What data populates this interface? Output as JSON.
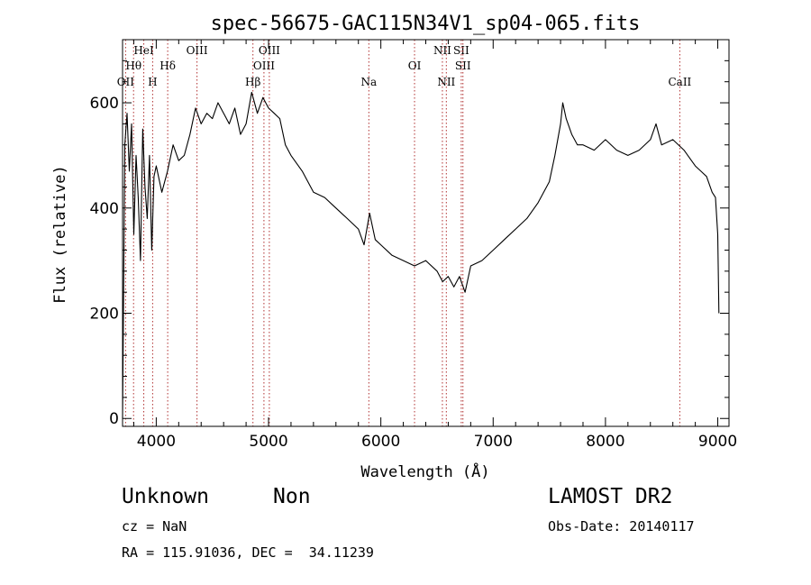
{
  "chart_data": {
    "type": "line",
    "title": "spec-56675-GAC115N34V1_sp04-065.fits",
    "xlabel": "Wavelength (Å)",
    "ylabel": "Flux (relative)",
    "xlim": [
      3700,
      9100
    ],
    "ylim": [
      -15,
      720
    ],
    "xticks": [
      4000,
      5000,
      6000,
      7000,
      8000,
      9000
    ],
    "yticks": [
      0,
      200,
      400,
      600
    ],
    "grid": false,
    "series": [
      {
        "name": "flux",
        "x": [
          3700,
          3720,
          3740,
          3760,
          3780,
          3800,
          3820,
          3840,
          3860,
          3880,
          3900,
          3920,
          3940,
          3960,
          3980,
          4000,
          4050,
          4100,
          4150,
          4200,
          4250,
          4300,
          4350,
          4400,
          4450,
          4500,
          4550,
          4600,
          4650,
          4700,
          4750,
          4800,
          4850,
          4900,
          4950,
          5000,
          5050,
          5100,
          5150,
          5200,
          5300,
          5400,
          5500,
          5600,
          5700,
          5800,
          5850,
          5900,
          5950,
          6000,
          6100,
          6200,
          6300,
          6400,
          6500,
          6550,
          6600,
          6650,
          6700,
          6750,
          6800,
          6900,
          7000,
          7100,
          7200,
          7300,
          7400,
          7500,
          7550,
          7600,
          7620,
          7650,
          7700,
          7750,
          7800,
          7900,
          8000,
          8100,
          8200,
          8300,
          8400,
          8450,
          8500,
          8600,
          8700,
          8800,
          8850,
          8900,
          8950,
          8980,
          9000,
          9010
        ],
        "y": [
          0,
          520,
          580,
          470,
          560,
          350,
          500,
          420,
          300,
          550,
          440,
          380,
          500,
          320,
          460,
          480,
          430,
          470,
          520,
          490,
          500,
          540,
          590,
          560,
          580,
          570,
          600,
          580,
          560,
          590,
          540,
          560,
          620,
          580,
          610,
          590,
          580,
          570,
          520,
          500,
          470,
          430,
          420,
          400,
          380,
          360,
          330,
          390,
          340,
          330,
          310,
          300,
          290,
          300,
          280,
          260,
          270,
          250,
          270,
          240,
          290,
          300,
          320,
          340,
          360,
          380,
          410,
          450,
          500,
          560,
          600,
          570,
          540,
          520,
          520,
          510,
          530,
          510,
          500,
          510,
          530,
          560,
          520,
          530,
          510,
          480,
          470,
          460,
          430,
          420,
          350,
          200
        ]
      }
    ],
    "spectral_lines": [
      {
        "label": "OII",
        "wavelength": 3727,
        "row": 3
      },
      {
        "label": "Hθ",
        "wavelength": 3798,
        "row": 1
      },
      {
        "label": "HeI",
        "wavelength": 3889,
        "row": 0
      },
      {
        "label": "H",
        "wavelength": 3968,
        "row": 2
      },
      {
        "label": "Hδ",
        "wavelength": 4102,
        "row": 1
      },
      {
        "label": "OIII",
        "wavelength": 4363,
        "row": 0
      },
      {
        "label": "Hβ",
        "wavelength": 4861,
        "row": 2
      },
      {
        "label": "OIII",
        "wavelength": 4959,
        "row": 1
      },
      {
        "label": "OIII",
        "wavelength": 5007,
        "row": 0
      },
      {
        "label": "Na",
        "wavelength": 5893,
        "row": 3
      },
      {
        "label": "OI",
        "wavelength": 6300,
        "row": 1
      },
      {
        "label": "NII",
        "wavelength": 6548,
        "row": 0
      },
      {
        "label": "NII",
        "wavelength": 6583,
        "row": 2
      },
      {
        "label": "SII",
        "wavelength": 6716,
        "row": 0
      },
      {
        "label": "SII",
        "wavelength": 6731,
        "row": 1
      },
      {
        "label": "CaII",
        "wavelength": 8662,
        "row": 3
      }
    ]
  },
  "info": {
    "class_label": "Unknown",
    "subclass_label": "Non",
    "cz_text": "cz = NaN",
    "coords_text": "RA = 115.91036, DEC =  34.11239",
    "survey": "LAMOST DR2",
    "obs_date_text": "Obs-Date: 20140117"
  }
}
